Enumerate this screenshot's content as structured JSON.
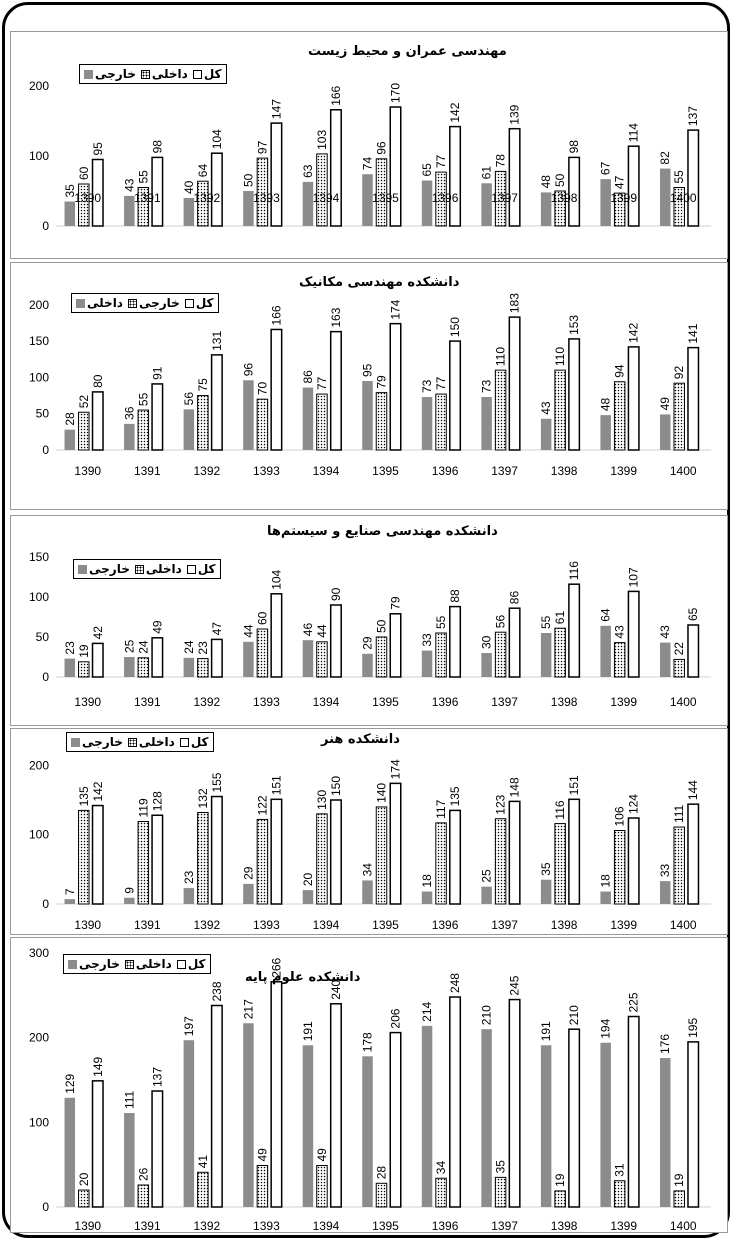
{
  "colors": {
    "external_fill": "#8c8c8c",
    "internal_pattern": "dotted",
    "total_fill": "#ffffff",
    "stroke": "#000000"
  },
  "chart_data": [
    {
      "type": "bar",
      "title": "مهندسی عمران و محیط زیست",
      "categories": [
        "1390",
        "1391",
        "1392",
        "1393",
        "1394",
        "1395",
        "1396",
        "1397",
        "1398",
        "1399",
        "1400"
      ],
      "yticks": [
        0,
        100,
        200
      ],
      "ylim": [
        0,
        230
      ],
      "legend": {
        "position": "top-left",
        "items": [
          "کل",
          "داخلی",
          "خارجی"
        ]
      },
      "series": [
        {
          "name": "خارجی",
          "values": [
            35,
            43,
            40,
            50,
            63,
            74,
            65,
            61,
            48,
            67,
            82
          ]
        },
        {
          "name": "داخلی",
          "values": [
            60,
            55,
            64,
            97,
            103,
            96,
            77,
            78,
            50,
            47,
            55
          ]
        },
        {
          "name": "کل",
          "values": [
            95,
            98,
            104,
            147,
            166,
            170,
            142,
            139,
            98,
            114,
            137
          ]
        }
      ]
    },
    {
      "type": "bar",
      "title": "دانشکده مهندسی مکانیک",
      "categories": [
        "1390",
        "1391",
        "1392",
        "1393",
        "1394",
        "1395",
        "1396",
        "1397",
        "1398",
        "1399",
        "1400"
      ],
      "yticks": [
        0,
        50,
        100,
        150,
        200
      ],
      "ylim": [
        0,
        230
      ],
      "legend": {
        "position": "top-left",
        "items": [
          "کل",
          "خارجی",
          "داخلی"
        ]
      },
      "series": [
        {
          "name": "داخلی",
          "values": [
            28,
            36,
            56,
            96,
            86,
            95,
            73,
            73,
            43,
            48,
            49
          ]
        },
        {
          "name": "خارجی",
          "values": [
            52,
            55,
            75,
            70,
            77,
            79,
            77,
            110,
            110,
            94,
            92
          ]
        },
        {
          "name": "کل",
          "values": [
            80,
            91,
            131,
            166,
            163,
            174,
            150,
            183,
            153,
            142,
            141
          ]
        }
      ]
    },
    {
      "type": "bar",
      "title": "دانشکده مهندسی صنایع و سیستم‌ها",
      "categories": [
        "1390",
        "1391",
        "1392",
        "1393",
        "1394",
        "1395",
        "1396",
        "1397",
        "1398",
        "1399",
        "1400"
      ],
      "yticks": [
        0,
        50,
        100,
        150
      ],
      "ylim": [
        0,
        150
      ],
      "legend": {
        "position": "top-left",
        "items": [
          "کل",
          "داخلی",
          "خارجی"
        ]
      },
      "series": [
        {
          "name": "خارجی",
          "values": [
            23,
            25,
            24,
            44,
            46,
            29,
            33,
            30,
            55,
            64,
            43
          ]
        },
        {
          "name": "داخلی",
          "values": [
            19,
            24,
            23,
            60,
            44,
            50,
            55,
            56,
            61,
            43,
            22
          ]
        },
        {
          "name": "کل",
          "values": [
            42,
            49,
            47,
            104,
            90,
            79,
            88,
            86,
            116,
            107,
            65
          ]
        }
      ]
    },
    {
      "type": "bar",
      "title": "دانشکده هنر",
      "categories": [
        "1390",
        "1391",
        "1392",
        "1393",
        "1394",
        "1395",
        "1396",
        "1397",
        "1398",
        "1399",
        "1400"
      ],
      "yticks": [
        0,
        100,
        200
      ],
      "ylim": [
        0,
        225
      ],
      "legend": {
        "position": "top-left",
        "items": [
          "کل",
          "داخلی",
          "خارجی"
        ]
      },
      "series": [
        {
          "name": "خارجی",
          "values": [
            7,
            9,
            23,
            29,
            20,
            34,
            18,
            25,
            35,
            18,
            33
          ]
        },
        {
          "name": "داخلی",
          "values": [
            135,
            119,
            132,
            122,
            130,
            140,
            117,
            123,
            116,
            106,
            111
          ]
        },
        {
          "name": "کل",
          "values": [
            142,
            128,
            155,
            151,
            150,
            174,
            135,
            148,
            151,
            124,
            144
          ]
        }
      ]
    },
    {
      "type": "bar",
      "title": "دانشکده علوم پایه",
      "categories": [
        "1390",
        "1391",
        "1392",
        "1393",
        "1394",
        "1395",
        "1396",
        "1397",
        "1398",
        "1399",
        "1400"
      ],
      "yticks": [
        0,
        100,
        200,
        300
      ],
      "ylim": [
        0,
        300
      ],
      "legend": {
        "position": "top-left",
        "items": [
          "کل",
          "داخلی",
          "خارجی"
        ]
      },
      "series": [
        {
          "name": "خارجی",
          "values": [
            129,
            111,
            197,
            217,
            191,
            178,
            214,
            210,
            191,
            194,
            176
          ]
        },
        {
          "name": "داخلی",
          "values": [
            20,
            26,
            41,
            49,
            49,
            28,
            34,
            35,
            19,
            31,
            19
          ]
        },
        {
          "name": "کل",
          "values": [
            149,
            137,
            238,
            266,
            240,
            206,
            248,
            245,
            210,
            225,
            195
          ]
        }
      ]
    }
  ]
}
